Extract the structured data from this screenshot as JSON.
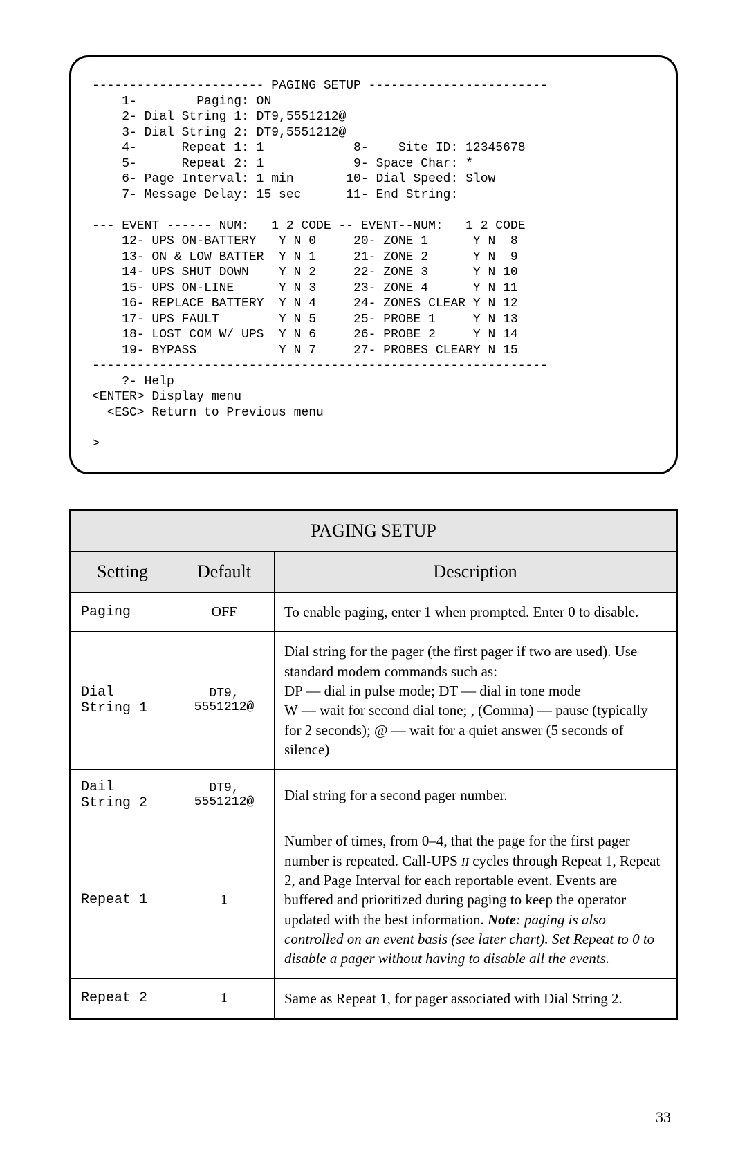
{
  "terminal": {
    "lines": [
      "----------------------- PAGING SETUP ------------------------",
      "    1-        Paging: ON",
      "    2- Dial String 1: DT9,5551212@",
      "    3- Dial String 2: DT9,5551212@",
      "    4-      Repeat 1: 1            8-    Site ID: 12345678",
      "    5-      Repeat 2: 1            9- Space Char: *",
      "    6- Page Interval: 1 min       10- Dial Speed: Slow",
      "    7- Message Delay: 15 sec      11- End String:",
      "",
      "--- EVENT ------ NUM:   1 2 CODE -- EVENT--NUM:   1 2 CODE",
      "    12- UPS ON-BATTERY   Y N 0     20- ZONE 1      Y N  8",
      "    13- ON & LOW BATTER  Y N 1     21- ZONE 2      Y N  9",
      "    14- UPS SHUT DOWN    Y N 2     22- ZONE 3      Y N 10",
      "    15- UPS ON-LINE      Y N 3     23- ZONE 4      Y N 11",
      "    16- REPLACE BATTERY  Y N 4     24- ZONES CLEAR Y N 12",
      "    17- UPS FAULT        Y N 5     25- PROBE 1     Y N 13",
      "    18- LOST COM W/ UPS  Y N 6     26- PROBE 2     Y N 14",
      "    19- BYPASS           Y N 7     27- PROBES CLEARY N 15",
      "-------------------------------------------------------------",
      "    ?- Help",
      "<ENTER> Display menu",
      "  <ESC> Return to Previous menu",
      "",
      ">"
    ]
  },
  "table": {
    "title": "PAGING SETUP",
    "headers": {
      "setting": "Setting",
      "default": "Default",
      "description": "Description"
    },
    "rows": [
      {
        "setting": "Paging",
        "default": "OFF",
        "default_mono": false,
        "desc_html": "To enable paging, enter 1 when prompted. Enter 0 to disable."
      },
      {
        "setting": "Dial\nString 1",
        "default": "DT9,\n5551212@",
        "default_mono": true,
        "desc_html": "Dial string for the pager (the first pager if two are used). Use standard modem commands such as:<br>DP — dial in pulse mode; DT — dial in tone mode<br>W — wait for second dial tone; , (Comma) — pause (typically for 2 seconds); @ — wait for a quiet answer (5 seconds of silence)"
      },
      {
        "setting": "Dail\nString 2",
        "default": "DT9,\n5551212@",
        "default_mono": true,
        "desc_html": "Dial string for a second pager number."
      },
      {
        "setting": "Repeat 1",
        "default": "1",
        "default_mono": false,
        "desc_html": "Number of times, from 0–4, that the page for the first pager number is repeated. Call-UPS <span class=\"smallcaps-ii\">II</span> cycles through Repeat 1, Repeat 2, and Page Interval for each reportable event. Events are buffered and prioritized during paging to keep the operator updated with the best information. <span class=\"bolditalic\">Note</span><span class=\"ital\">: paging is also controlled on an event basis (see later chart). Set Repeat to 0 to disable a pager without having to disable all the events.</span>"
      },
      {
        "setting": "Repeat 2",
        "default": "1",
        "default_mono": false,
        "desc_html": "Same as Repeat 1, for pager associated with Dial String 2."
      }
    ]
  },
  "page_number": "33"
}
